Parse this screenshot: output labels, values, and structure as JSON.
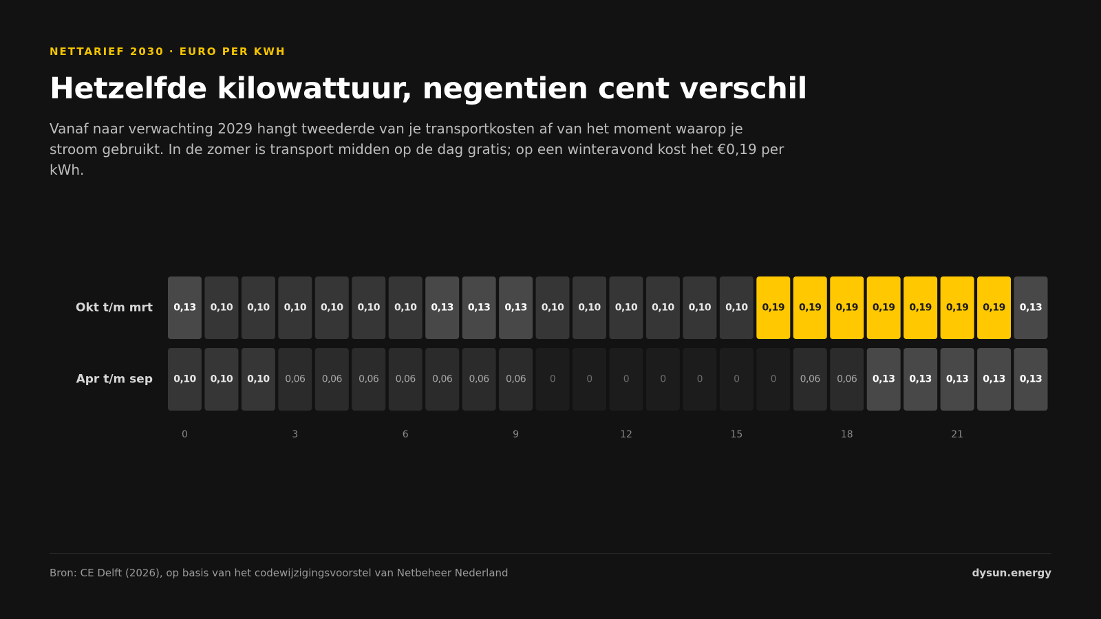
{
  "chart_data": {
    "type": "heatmap",
    "eyebrow": "NETTARIEF 2030 · EURO PER KWH",
    "title": "Hetzelfde kilowattuur, negentien cent verschil",
    "subtitle": "Vanaf naar verwachting 2029 hangt tweederde van je transportkosten af van het moment waarop je stroom gebruikt. In de zomer is transport midden op de dag gratis; op een winteravond kost het €0,19 per kWh.",
    "categories": [
      "0",
      null,
      null,
      "3",
      null,
      null,
      "6",
      null,
      null,
      "9",
      null,
      null,
      "12",
      null,
      null,
      "15",
      null,
      null,
      "18",
      null,
      null,
      "21",
      null,
      null
    ],
    "series": [
      {
        "name": "Okt t/m mrt",
        "values": [
          0.13,
          0.1,
          0.1,
          0.1,
          0.1,
          0.1,
          0.1,
          0.13,
          0.13,
          0.13,
          0.1,
          0.1,
          0.1,
          0.1,
          0.1,
          0.1,
          0.19,
          0.19,
          0.19,
          0.19,
          0.19,
          0.19,
          0.19,
          0.13
        ],
        "value_labels": [
          "0,13",
          "0,10",
          "0,10",
          "0,10",
          "0,10",
          "0,10",
          "0,10",
          "0,13",
          "0,13",
          "0,13",
          "0,10",
          "0,10",
          "0,10",
          "0,10",
          "0,10",
          "0,10",
          "0,19",
          "0,19",
          "0,19",
          "0,19",
          "0,19",
          "0,19",
          "0,19",
          "0,13"
        ]
      },
      {
        "name": "Apr t/m sep",
        "values": [
          0.1,
          0.1,
          0.1,
          0.06,
          0.06,
          0.06,
          0.06,
          0.06,
          0.06,
          0.06,
          0,
          0,
          0,
          0,
          0,
          0,
          0,
          0.06,
          0.06,
          0.13,
          0.13,
          0.13,
          0.13,
          0.13
        ],
        "value_labels": [
          "0,10",
          "0,10",
          "0,10",
          "0,06",
          "0,06",
          "0,06",
          "0,06",
          "0,06",
          "0,06",
          "0,06",
          "0",
          "0",
          "0",
          "0",
          "0",
          "0",
          "0",
          "0,06",
          "0,06",
          "0,13",
          "0,13",
          "0,13",
          "0,13",
          "0,13"
        ]
      }
    ],
    "color_scale": [
      {
        "value": 0,
        "color": "#1c1c1c",
        "text": "#6e6e6e"
      },
      {
        "value": 0.06,
        "color": "#2b2b2b",
        "text": "#a8a8a8"
      },
      {
        "value": 0.1,
        "color": "#363636",
        "text": "#e8e8e8"
      },
      {
        "value": 0.13,
        "color": "#484848",
        "text": "#ffffff"
      },
      {
        "value": 0.19,
        "color": "#ffc800",
        "text": "#1a1a1a"
      }
    ],
    "source": "Bron: CE Delft (2026), op basis van het codewijzigingsvoorstel van Netbeheer Nederland",
    "brand": "dysun.energy"
  }
}
